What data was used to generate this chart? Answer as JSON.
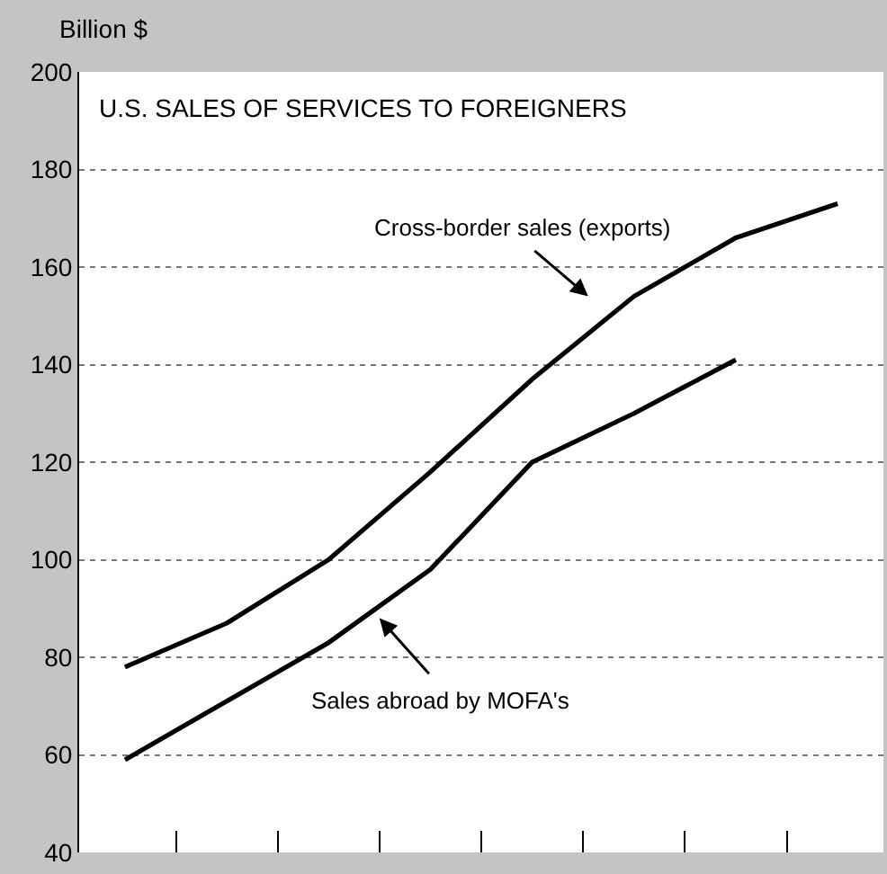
{
  "chart_data": {
    "type": "line",
    "title": "U.S. SALES OF SERVICES TO FOREIGNERS",
    "ylabel": "Billion $",
    "categories": [
      null,
      null,
      null,
      null,
      null,
      null,
      null,
      null
    ],
    "series": [
      {
        "color": "#000000",
        "values": [
          78,
          87,
          100,
          118,
          137,
          154,
          166,
          173
        ]
      },
      {
        "color": "#000000",
        "values": [
          59,
          71,
          83,
          98,
          120,
          130,
          141,
          null
        ]
      }
    ],
    "annotations": [
      "Cross-border sales (exports)",
      "Sales abroad by MOFA's"
    ],
    "ylim": [
      40,
      200
    ],
    "yticks": [
      40,
      60,
      80,
      100,
      120,
      140,
      160,
      180,
      200
    ],
    "grid": "y",
    "marker": "none",
    "line_style": "solid"
  }
}
